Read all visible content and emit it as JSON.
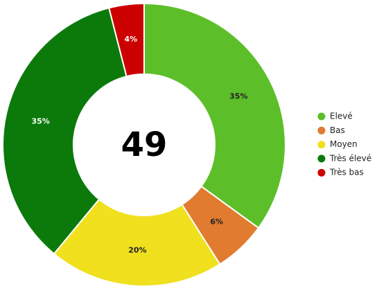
{
  "chart_data": {
    "type": "donut",
    "categories": [
      "Elevé",
      "Bas",
      "Moyen",
      "Très élevé",
      "Très bas"
    ],
    "values": [
      35,
      6,
      20,
      35,
      4
    ],
    "value_labels": [
      "35%",
      "6%",
      "20%",
      "35%",
      "4%"
    ],
    "colors": [
      "#5cbf2a",
      "#e07b30",
      "#f0e01e",
      "#0b7a0b",
      "#cc0000"
    ],
    "center_label": 49,
    "legend": "right"
  }
}
